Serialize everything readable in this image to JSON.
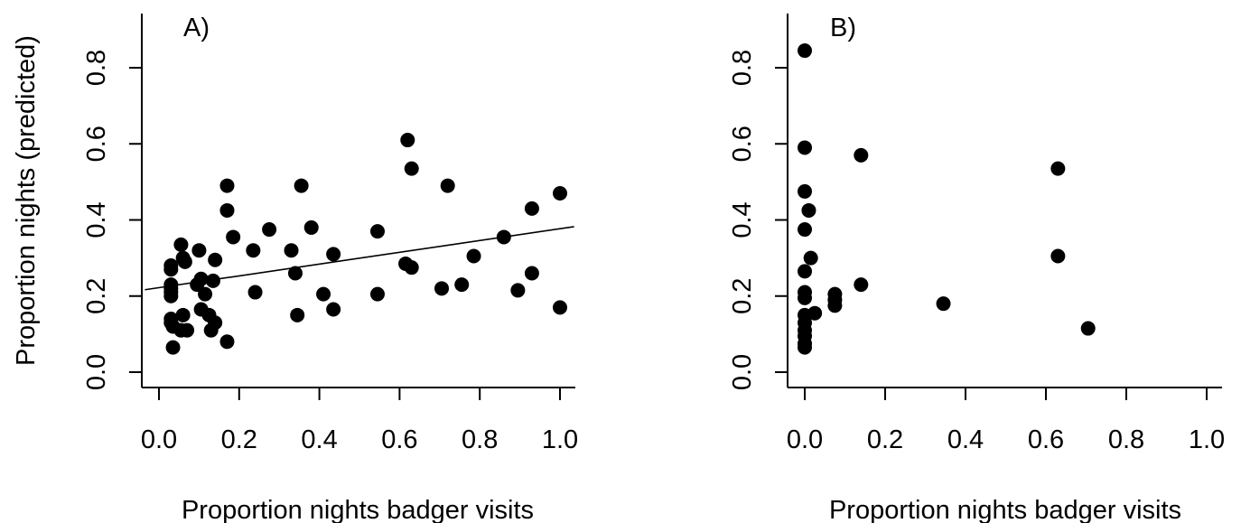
{
  "chart_data": [
    {
      "type": "scatter",
      "panel_label": "A)",
      "xlabel": "Proportion nights badger visits",
      "ylabel": "Proportion nights (predicted)",
      "xlim": [
        -0.04,
        1.04
      ],
      "ylim": [
        -0.04,
        0.94
      ],
      "xticks": [
        0.0,
        0.2,
        0.4,
        0.6,
        0.8,
        1.0
      ],
      "yticks": [
        0.0,
        0.2,
        0.4,
        0.6,
        0.8
      ],
      "xtick_labels": [
        "0.0",
        "0.2",
        "0.4",
        "0.6",
        "0.8",
        "1.0"
      ],
      "ytick_labels": [
        "0.0",
        "0.2",
        "0.4",
        "0.6",
        "0.8"
      ],
      "grid": false,
      "trend_line": {
        "intercept": 0.222,
        "slope": 0.155
      },
      "points": [
        {
          "x": 0.03,
          "y": 0.28
        },
        {
          "x": 0.03,
          "y": 0.27
        },
        {
          "x": 0.03,
          "y": 0.23
        },
        {
          "x": 0.03,
          "y": 0.22
        },
        {
          "x": 0.03,
          "y": 0.21
        },
        {
          "x": 0.03,
          "y": 0.2
        },
        {
          "x": 0.03,
          "y": 0.14
        },
        {
          "x": 0.03,
          "y": 0.13
        },
        {
          "x": 0.035,
          "y": 0.12
        },
        {
          "x": 0.035,
          "y": 0.065
        },
        {
          "x": 0.055,
          "y": 0.335
        },
        {
          "x": 0.06,
          "y": 0.3
        },
        {
          "x": 0.065,
          "y": 0.29
        },
        {
          "x": 0.06,
          "y": 0.15
        },
        {
          "x": 0.055,
          "y": 0.11
        },
        {
          "x": 0.07,
          "y": 0.11
        },
        {
          "x": 0.095,
          "y": 0.23
        },
        {
          "x": 0.1,
          "y": 0.32
        },
        {
          "x": 0.105,
          "y": 0.245
        },
        {
          "x": 0.105,
          "y": 0.165
        },
        {
          "x": 0.115,
          "y": 0.205
        },
        {
          "x": 0.125,
          "y": 0.15
        },
        {
          "x": 0.13,
          "y": 0.11
        },
        {
          "x": 0.135,
          "y": 0.24
        },
        {
          "x": 0.14,
          "y": 0.295
        },
        {
          "x": 0.14,
          "y": 0.13
        },
        {
          "x": 0.17,
          "y": 0.49
        },
        {
          "x": 0.17,
          "y": 0.425
        },
        {
          "x": 0.17,
          "y": 0.08
        },
        {
          "x": 0.185,
          "y": 0.355
        },
        {
          "x": 0.235,
          "y": 0.32
        },
        {
          "x": 0.24,
          "y": 0.21
        },
        {
          "x": 0.275,
          "y": 0.375
        },
        {
          "x": 0.33,
          "y": 0.32
        },
        {
          "x": 0.34,
          "y": 0.26
        },
        {
          "x": 0.345,
          "y": 0.15
        },
        {
          "x": 0.355,
          "y": 0.49
        },
        {
          "x": 0.38,
          "y": 0.38
        },
        {
          "x": 0.41,
          "y": 0.205
        },
        {
          "x": 0.435,
          "y": 0.31
        },
        {
          "x": 0.435,
          "y": 0.165
        },
        {
          "x": 0.545,
          "y": 0.37
        },
        {
          "x": 0.545,
          "y": 0.205
        },
        {
          "x": 0.615,
          "y": 0.285
        },
        {
          "x": 0.62,
          "y": 0.61
        },
        {
          "x": 0.63,
          "y": 0.535
        },
        {
          "x": 0.63,
          "y": 0.275
        },
        {
          "x": 0.705,
          "y": 0.22
        },
        {
          "x": 0.72,
          "y": 0.49
        },
        {
          "x": 0.755,
          "y": 0.23
        },
        {
          "x": 0.785,
          "y": 0.305
        },
        {
          "x": 0.86,
          "y": 0.355
        },
        {
          "x": 0.895,
          "y": 0.215
        },
        {
          "x": 0.93,
          "y": 0.43
        },
        {
          "x": 0.93,
          "y": 0.26
        },
        {
          "x": 1.0,
          "y": 0.47
        },
        {
          "x": 1.0,
          "y": 0.17
        }
      ]
    },
    {
      "type": "scatter",
      "panel_label": "B)",
      "xlabel": "Proportion nights badger visits",
      "ylabel": "",
      "xlim": [
        -0.04,
        1.04
      ],
      "ylim": [
        -0.04,
        0.94
      ],
      "xticks": [
        0.0,
        0.2,
        0.4,
        0.6,
        0.8,
        1.0
      ],
      "yticks": [
        0.0,
        0.2,
        0.4,
        0.6,
        0.8
      ],
      "xtick_labels": [
        "0.0",
        "0.2",
        "0.4",
        "0.6",
        "0.8",
        "1.0"
      ],
      "ytick_labels": [
        "0.0",
        "0.2",
        "0.4",
        "0.6",
        "0.8"
      ],
      "grid": false,
      "points": [
        {
          "x": 0.0,
          "y": 0.845
        },
        {
          "x": 0.0,
          "y": 0.59
        },
        {
          "x": 0.0,
          "y": 0.475
        },
        {
          "x": 0.0,
          "y": 0.375
        },
        {
          "x": 0.0,
          "y": 0.265
        },
        {
          "x": 0.0,
          "y": 0.21
        },
        {
          "x": 0.0,
          "y": 0.195
        },
        {
          "x": 0.0,
          "y": 0.15
        },
        {
          "x": 0.0,
          "y": 0.13
        },
        {
          "x": 0.0,
          "y": 0.11
        },
        {
          "x": 0.0,
          "y": 0.095
        },
        {
          "x": 0.0,
          "y": 0.075
        },
        {
          "x": 0.0,
          "y": 0.065
        },
        {
          "x": 0.01,
          "y": 0.425
        },
        {
          "x": 0.015,
          "y": 0.3
        },
        {
          "x": 0.025,
          "y": 0.155
        },
        {
          "x": 0.075,
          "y": 0.205
        },
        {
          "x": 0.075,
          "y": 0.19
        },
        {
          "x": 0.075,
          "y": 0.175
        },
        {
          "x": 0.14,
          "y": 0.57
        },
        {
          "x": 0.14,
          "y": 0.23
        },
        {
          "x": 0.345,
          "y": 0.18
        },
        {
          "x": 0.63,
          "y": 0.535
        },
        {
          "x": 0.63,
          "y": 0.305
        },
        {
          "x": 0.705,
          "y": 0.115
        }
      ]
    }
  ]
}
